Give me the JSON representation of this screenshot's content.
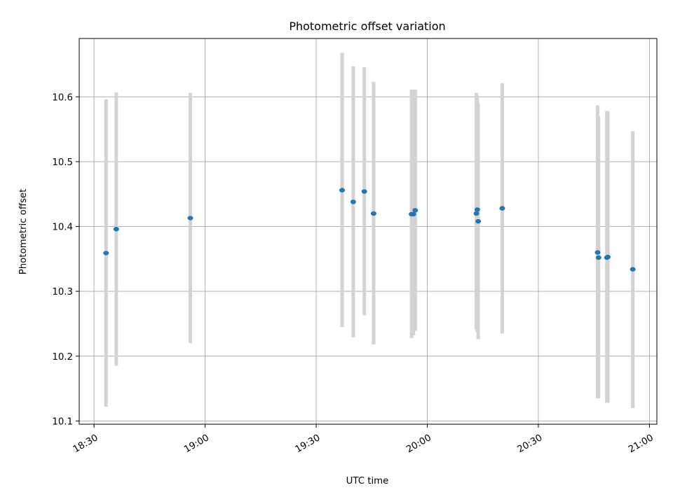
{
  "chart_data": {
    "type": "scatter",
    "title": "Photometric offset variation",
    "xlabel": "UTC time",
    "ylabel": "Photometric offset",
    "x_ticks": [
      "18:30",
      "19:00",
      "19:30",
      "20:00",
      "20:30",
      "21:00"
    ],
    "y_ticks": [
      "10.1",
      "10.2",
      "10.3",
      "10.4",
      "10.5",
      "10.6"
    ],
    "xlim": [
      "18:26",
      "21:02"
    ],
    "ylim": [
      10.095,
      10.69
    ],
    "grid": true,
    "colors": {
      "point": "#1f77b4",
      "errorbar": "#d3d3d3",
      "grid": "#b0b0b0"
    },
    "points": [
      {
        "x": "18:33:15",
        "y": 10.359,
        "ylow": 10.122,
        "yhigh": 10.596
      },
      {
        "x": "18:36:00",
        "y": 10.396,
        "ylow": 10.185,
        "yhigh": 10.607
      },
      {
        "x": "18:56:00",
        "y": 10.413,
        "ylow": 10.22,
        "yhigh": 10.606
      },
      {
        "x": "19:37:00",
        "y": 10.456,
        "ylow": 10.245,
        "yhigh": 10.668
      },
      {
        "x": "19:40:00",
        "y": 10.438,
        "ylow": 10.229,
        "yhigh": 10.647
      },
      {
        "x": "19:43:00",
        "y": 10.454,
        "ylow": 10.263,
        "yhigh": 10.646
      },
      {
        "x": "19:45:30",
        "y": 10.42,
        "ylow": 10.218,
        "yhigh": 10.623
      },
      {
        "x": "19:55:45",
        "y": 10.419,
        "ylow": 10.228,
        "yhigh": 10.611
      },
      {
        "x": "19:56:15",
        "y": 10.419,
        "ylow": 10.232,
        "yhigh": 10.611
      },
      {
        "x": "19:56:45",
        "y": 10.425,
        "ylow": 10.239,
        "yhigh": 10.611
      },
      {
        "x": "20:13:15",
        "y": 10.42,
        "ylow": 10.241,
        "yhigh": 10.606
      },
      {
        "x": "20:13:30",
        "y": 10.426,
        "ylow": 10.237,
        "yhigh": 10.602
      },
      {
        "x": "20:13:45",
        "y": 10.408,
        "ylow": 10.226,
        "yhigh": 10.59
      },
      {
        "x": "20:20:15",
        "y": 10.428,
        "ylow": 10.235,
        "yhigh": 10.621
      },
      {
        "x": "20:46:00",
        "y": 10.36,
        "ylow": 10.135,
        "yhigh": 10.587
      },
      {
        "x": "20:46:15",
        "y": 10.352,
        "ylow": 10.135,
        "yhigh": 10.57
      },
      {
        "x": "20:48:30",
        "y": 10.352,
        "ylow": 10.128,
        "yhigh": 10.578
      },
      {
        "x": "20:48:45",
        "y": 10.353,
        "ylow": 10.128,
        "yhigh": 10.578
      },
      {
        "x": "20:55:30",
        "y": 10.334,
        "ylow": 10.12,
        "yhigh": 10.547
      }
    ]
  }
}
